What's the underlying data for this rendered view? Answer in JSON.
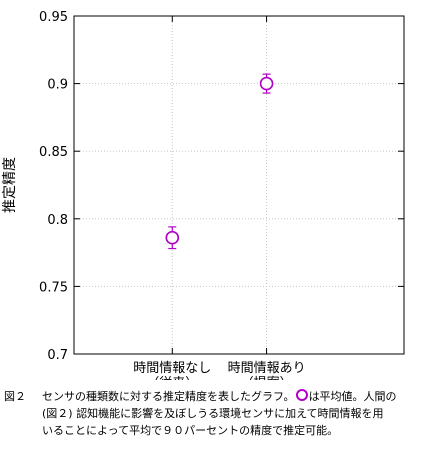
{
  "chart_data": {
    "type": "scatter",
    "categories": [
      "時間情報なし\n（従来）",
      "時間情報あり\n（提案）"
    ],
    "series": [
      {
        "values": [
          0.786,
          0.9
        ],
        "error": [
          0.008,
          0.007
        ]
      }
    ],
    "ylabel": "推定精度",
    "ylim": [
      0.7,
      0.95
    ],
    "yticks": [
      "0.7",
      "0.75",
      "0.8",
      "0.85",
      "0.9",
      "0.95"
    ],
    "grid": true,
    "marker_color": "#b000c8",
    "marker": "open-circle"
  },
  "caption": {
    "number": "図２",
    "text_before_marker": "センサの種類数に対する推定精度を表したグラフ。",
    "text_after_marker": "は平均値。人間の",
    "line2": "(図２) 認知機能に影響を及ぼしうる環境センサに加えて時間情報を用",
    "line3": "いることによって平均で９０パーセントの精度で推定可能。"
  }
}
